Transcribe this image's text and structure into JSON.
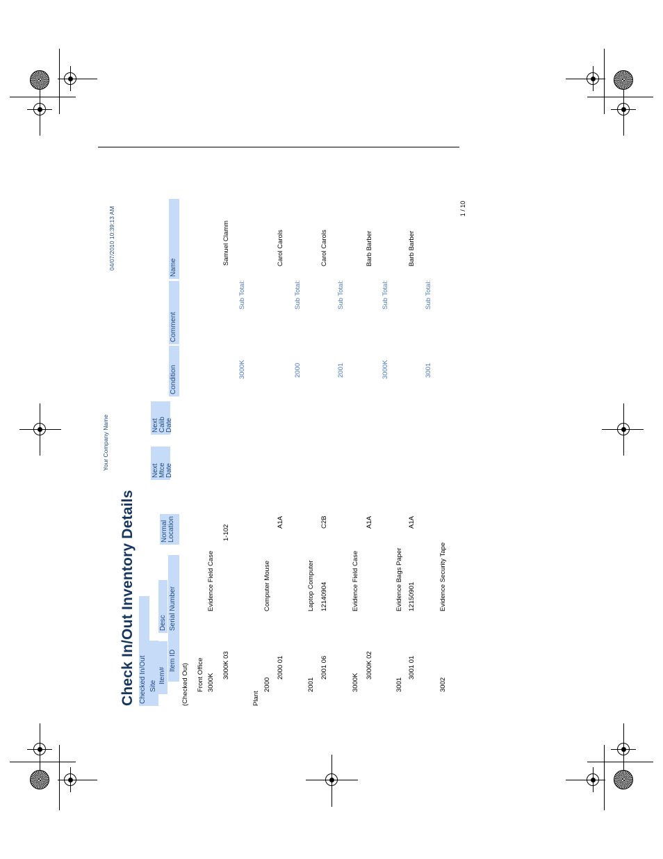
{
  "report": {
    "title": "Check In/Out Inventory Details",
    "company": "Your Company Name",
    "timestamp": "04/07/2010 10:39:13 AM",
    "page_number": "1 / 10"
  },
  "columns": {
    "checked": "Checked In/Out",
    "site": "Site",
    "item_num": "Item#",
    "desc": "Desc",
    "item_id": "Item ID",
    "serial": "Serial Number",
    "normal_location": "Normal Location",
    "next_mtce": "Next Mtce Date",
    "next_calib": "Next Calib Date",
    "condition": "Condition",
    "comment": "Comment",
    "name": "Name"
  },
  "status_group": "(Checked Out)",
  "sites": [
    {
      "name": "Front Office"
    },
    {
      "name": "Plant"
    }
  ],
  "items": [
    {
      "item": "3000K",
      "desc": "Evidence Field Case",
      "id": "3000K 03",
      "serial": "",
      "location": "1-102",
      "name": "Samuel Clamm",
      "subtotal_item": "3000K",
      "subtotal_label": "Sub Total:"
    },
    {
      "item": "2000",
      "desc": "Computer Mouse",
      "id": "2000 01",
      "serial": "",
      "location": "A1A",
      "name": "Carol Carols",
      "subtotal_item": "2000",
      "subtotal_label": "Sub Total:"
    },
    {
      "item": "2001",
      "desc": "Laptop Computer",
      "id": "2001 06",
      "serial": "12140904",
      "location": "C2B",
      "name": "Carol Carols",
      "subtotal_item": "2001",
      "subtotal_label": "Sub Total:"
    },
    {
      "item": "3000K",
      "desc": "Evidence Field Case",
      "id": "3000K 02",
      "serial": "",
      "location": "A1A",
      "name": "Barb Barber",
      "subtotal_item": "3000K",
      "subtotal_label": "Sub Total:"
    },
    {
      "item": "3001",
      "desc": "Evidence Bags Paper",
      "id": "3001 01",
      "serial": "12150901",
      "location": "A1A",
      "name": "Barb Barber",
      "subtotal_item": "3001",
      "subtotal_label": "Sub Total:"
    },
    {
      "item": "3002",
      "desc": "Evidence Security Tape"
    }
  ]
}
